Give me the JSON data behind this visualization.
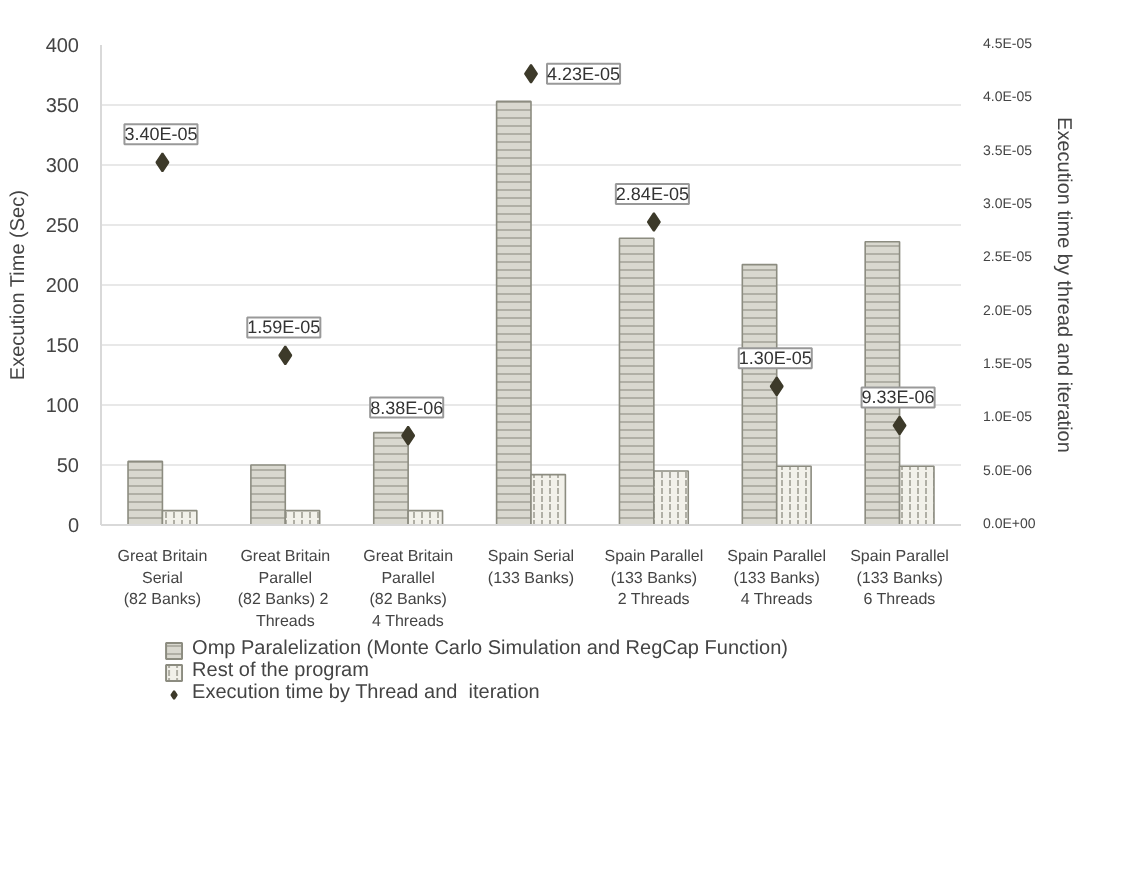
{
  "chart_data": {
    "type": "bar",
    "ylabel": "Execution Time (Sec)",
    "y2label": "Execution time by thread and iteration",
    "categories": [
      "Great Britain\nSerial\n(82 Banks)",
      "Great Britain\nParallel\n(82 Banks)  2\nThreads",
      "Great Britain\nParallel\n(82 Banks)\n4 Threads",
      "Spain Serial\n(133 Banks)",
      "Spain Parallel\n(133 Banks)\n2 Threads",
      "Spain Parallel\n(133 Banks)\n4 Threads",
      "Spain Parallel\n(133 Banks)\n6 Threads"
    ],
    "series": [
      {
        "name": "Omp Paralelization (Monte Carlo Simulation and RegCap Function)",
        "color": "#d9d8cf",
        "values": [
          53,
          50,
          77,
          353,
          239,
          217,
          236
        ]
      },
      {
        "name": "Rest of the program",
        "color": "#f2f1ea",
        "values": [
          12,
          12,
          12,
          42,
          45,
          49,
          49
        ]
      },
      {
        "name": "Execution time by Thread and  iteration",
        "type": "scatter",
        "axis": "y2",
        "color": "#3d3a2a",
        "values": [
          3.4e-05,
          1.59e-05,
          8.38e-06,
          4.23e-05,
          2.84e-05,
          1.3e-05,
          9.33e-06
        ],
        "value_labels": [
          "3.40E-05",
          "1.59E-05",
          "8.38E-06",
          "4.23E-05",
          "2.84E-05",
          "1.30E-05",
          "9.33E-06"
        ]
      }
    ],
    "ylim": [
      0,
      400
    ],
    "yticks": [
      0,
      50,
      100,
      150,
      200,
      250,
      300,
      350,
      400
    ],
    "y2lim": [
      0,
      4.5e-05
    ],
    "y2ticks": [
      {
        "value": 0,
        "label": "0.0E+00"
      },
      {
        "value": 5e-06,
        "label": "5.0E-06"
      },
      {
        "value": 1e-05,
        "label": "1.0E-05"
      },
      {
        "value": 1.5e-05,
        "label": "1.5E-05"
      },
      {
        "value": 2e-05,
        "label": "2.0E-05"
      },
      {
        "value": 2.5e-05,
        "label": "2.5E-05"
      },
      {
        "value": 3e-05,
        "label": "3.0E-05"
      },
      {
        "value": 3.5e-05,
        "label": "3.5E-05"
      },
      {
        "value": 4e-05,
        "label": "4.0E-05"
      },
      {
        "value": 4.5e-05,
        "label": "4.5E-05"
      }
    ],
    "grid": "y",
    "legend": "bottom",
    "marker": "diamond"
  }
}
